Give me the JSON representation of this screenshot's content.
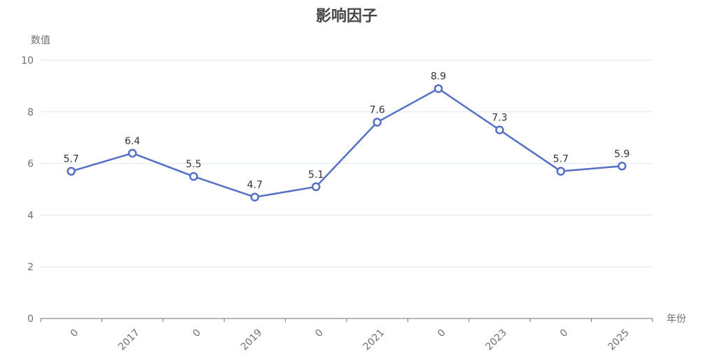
{
  "chart_data": {
    "type": "line",
    "title": "影响因子",
    "xlabel": "年份",
    "ylabel": "数值",
    "categories": [
      "0",
      "2017",
      "0",
      "2019",
      "0",
      "2021",
      "0",
      "2023",
      "0",
      "2025"
    ],
    "series": [
      {
        "name": "影响因子",
        "values": [
          5.7,
          6.4,
          5.5,
          4.7,
          5.1,
          7.6,
          8.9,
          7.3,
          5.7,
          5.9
        ],
        "color": "#5470c6"
      }
    ],
    "ylim": [
      0,
      10
    ],
    "yticks": [
      0,
      2,
      4,
      6,
      8,
      10
    ],
    "grid": true,
    "legend": null,
    "x_label_rotation": 45
  },
  "colors": {
    "line": "#5470c6",
    "grid": "#e0e6f1",
    "axis": "#6e7079",
    "title": "#464646",
    "label": "#333333"
  }
}
